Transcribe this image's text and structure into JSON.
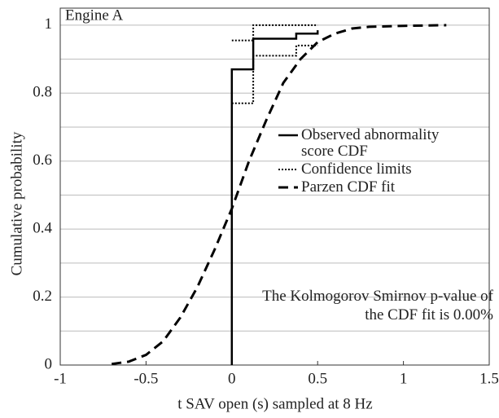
{
  "chart_data": {
    "type": "line",
    "title": "Engine A",
    "xlabel": "t SAV open (s) sampled at 8 Hz",
    "ylabel": "Cumulative  probability",
    "xlim": [
      -1,
      1.5
    ],
    "ylim": [
      0,
      1.05
    ],
    "xticks": [
      -1,
      -0.5,
      0,
      0.5,
      1,
      1.5
    ],
    "yticks": [
      0,
      0.2,
      0.4,
      0.6,
      0.8,
      1
    ],
    "yminor": [
      0.1,
      0.3,
      0.5,
      0.7,
      0.9
    ],
    "grid": true,
    "annotation": "The Kolmogorov Smirnov p-value of the CDF fit is 0.00%",
    "series": [
      {
        "name": "Observed abnormality score CDF",
        "color": "#000000",
        "style": "solid",
        "x": [
          0,
          0,
          0.125,
          0.125,
          0.375,
          0.375,
          0.5,
          0.5
        ],
        "values": [
          0,
          0.87,
          0.87,
          0.96,
          0.96,
          0.975,
          0.975,
          0.985
        ]
      },
      {
        "name": "Confidence limits",
        "color": "#000000",
        "style": "dotted",
        "x": [
          0,
          0.125,
          0.125,
          0.5,
          null,
          0,
          0.125,
          0.125,
          0.375,
          0.375,
          0.5
        ],
        "values": [
          0.955,
          0.955,
          1,
          1,
          null,
          0.77,
          0.77,
          0.91,
          0.91,
          0.94,
          0.94
        ]
      },
      {
        "name": "Parzen CDF fit",
        "color": "#000000",
        "style": "dashed",
        "x": [
          -0.7,
          -0.6,
          -0.5,
          -0.4,
          -0.3,
          -0.2,
          -0.1,
          0,
          0.1,
          0.2,
          0.3,
          0.4,
          0.5,
          0.6,
          0.7,
          0.8,
          1,
          1.25
        ],
        "values": [
          0.003,
          0.01,
          0.03,
          0.07,
          0.14,
          0.23,
          0.34,
          0.46,
          0.6,
          0.72,
          0.83,
          0.9,
          0.95,
          0.975,
          0.99,
          0.995,
          0.998,
          1
        ]
      }
    ]
  }
}
